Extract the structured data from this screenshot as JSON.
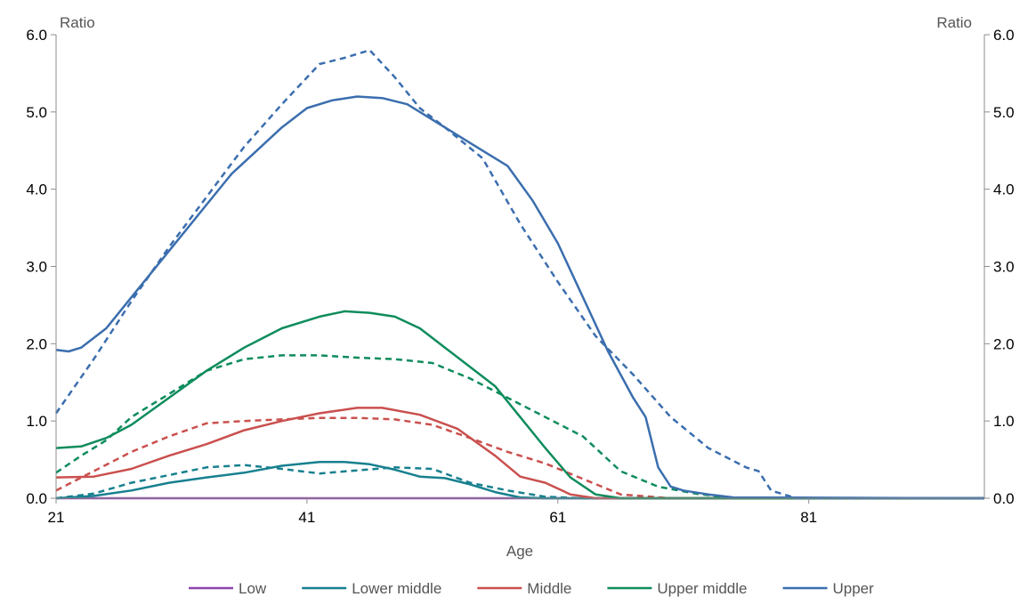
{
  "chart_data": {
    "type": "line",
    "title": "",
    "xlabel": "Age",
    "ylabel_left": "Ratio",
    "ylabel_right": "Ratio",
    "xlim": [
      21,
      95
    ],
    "ylim": [
      0,
      6
    ],
    "x_ticks": [
      21,
      41,
      61,
      81
    ],
    "y_ticks": [
      "0.0",
      "1.0",
      "2.0",
      "3.0",
      "4.0",
      "5.0",
      "6.0"
    ],
    "grid": false,
    "legend_position": "bottom",
    "legend": [
      {
        "name": "Low",
        "color": "#8E44AD"
      },
      {
        "name": "Lower middle",
        "color": "#17808F"
      },
      {
        "name": "Middle",
        "color": "#C9504E"
      },
      {
        "name": "Upper middle",
        "color": "#0E8C5C"
      },
      {
        "name": "Upper",
        "color": "#3B6EAE"
      }
    ],
    "series": [
      {
        "color": "#8E44AD",
        "dash": "solid",
        "x": [
          21,
          95
        ],
        "y": [
          0,
          0
        ]
      },
      {
        "color": "#17808F",
        "dash": "solid",
        "x": [
          21,
          24,
          27,
          30,
          33,
          36,
          39,
          42,
          44,
          46,
          48,
          50,
          52,
          54,
          56,
          58,
          60,
          95
        ],
        "y": [
          0.0,
          0.03,
          0.1,
          0.2,
          0.27,
          0.33,
          0.42,
          0.47,
          0.47,
          0.44,
          0.37,
          0.28,
          0.26,
          0.18,
          0.08,
          0.01,
          0.0,
          0.0
        ]
      },
      {
        "color": "#17808F",
        "dash": "dashed",
        "x": [
          21,
          24,
          27,
          30,
          33,
          36,
          39,
          42,
          45,
          48,
          51,
          54,
          57,
          60,
          63,
          95
        ],
        "y": [
          0.0,
          0.06,
          0.2,
          0.3,
          0.4,
          0.43,
          0.38,
          0.32,
          0.36,
          0.4,
          0.38,
          0.2,
          0.1,
          0.02,
          0.0,
          0.0
        ]
      },
      {
        "color": "#C9504E",
        "dash": "solid",
        "x": [
          21,
          24,
          27,
          30,
          33,
          36,
          39,
          42,
          45,
          47,
          50,
          53,
          56,
          58,
          60,
          62,
          64,
          66,
          95
        ],
        "y": [
          0.27,
          0.28,
          0.38,
          0.55,
          0.7,
          0.88,
          1.0,
          1.1,
          1.17,
          1.17,
          1.08,
          0.9,
          0.55,
          0.28,
          0.2,
          0.05,
          0.0,
          0.0,
          0.0
        ]
      },
      {
        "color": "#C9504E",
        "dash": "dashed",
        "x": [
          21,
          24,
          27,
          30,
          33,
          36,
          39,
          42,
          45,
          48,
          51,
          54,
          57,
          60,
          63,
          66,
          70,
          95
        ],
        "y": [
          0.1,
          0.35,
          0.6,
          0.8,
          0.97,
          1.0,
          1.02,
          1.04,
          1.04,
          1.02,
          0.95,
          0.78,
          0.6,
          0.45,
          0.25,
          0.05,
          0.0,
          0.0
        ]
      },
      {
        "color": "#0E8C5C",
        "dash": "solid",
        "x": [
          21,
          23,
          25,
          27,
          30,
          33,
          36,
          39,
          42,
          44,
          46,
          48,
          50,
          52,
          54,
          56,
          58,
          60,
          62,
          64,
          66,
          95
        ],
        "y": [
          0.65,
          0.67,
          0.78,
          0.95,
          1.3,
          1.65,
          1.95,
          2.2,
          2.35,
          2.42,
          2.4,
          2.35,
          2.2,
          1.95,
          1.7,
          1.45,
          1.05,
          0.65,
          0.27,
          0.05,
          0.0,
          0.0
        ]
      },
      {
        "color": "#0E8C5C",
        "dash": "dashed",
        "x": [
          21,
          23,
          25,
          27,
          30,
          33,
          36,
          39,
          42,
          45,
          48,
          51,
          54,
          57,
          60,
          63,
          66,
          69,
          72,
          75,
          95
        ],
        "y": [
          0.33,
          0.55,
          0.75,
          1.05,
          1.35,
          1.65,
          1.8,
          1.85,
          1.85,
          1.82,
          1.8,
          1.75,
          1.55,
          1.3,
          1.05,
          0.8,
          0.35,
          0.15,
          0.06,
          0.0,
          0.0
        ]
      },
      {
        "color": "#3B6EAE",
        "dash": "solid",
        "x": [
          21,
          22,
          23,
          25,
          27,
          30,
          33,
          35,
          37,
          39,
          41,
          43,
          45,
          47,
          49,
          51,
          53,
          55,
          57,
          59,
          61,
          63,
          65,
          67,
          68,
          69,
          70,
          71,
          73,
          75,
          95
        ],
        "y": [
          1.92,
          1.9,
          1.95,
          2.2,
          2.6,
          3.2,
          3.8,
          4.2,
          4.5,
          4.8,
          5.05,
          5.15,
          5.2,
          5.18,
          5.1,
          4.9,
          4.7,
          4.5,
          4.3,
          3.85,
          3.3,
          2.6,
          1.9,
          1.3,
          1.05,
          0.4,
          0.15,
          0.1,
          0.05,
          0.01,
          0.0
        ]
      },
      {
        "color": "#3B6EAE",
        "dash": "dashed",
        "x": [
          21,
          24,
          27,
          30,
          33,
          36,
          39,
          42,
          44,
          46,
          48,
          50,
          52,
          55,
          58,
          61,
          64,
          67,
          70,
          73,
          76,
          77,
          78,
          80,
          95
        ],
        "y": [
          1.1,
          1.8,
          2.55,
          3.25,
          3.9,
          4.55,
          5.1,
          5.62,
          5.7,
          5.8,
          5.45,
          5.05,
          4.8,
          4.4,
          3.55,
          2.8,
          2.1,
          1.6,
          1.05,
          0.65,
          0.4,
          0.35,
          0.1,
          0.0,
          0.0
        ]
      }
    ]
  }
}
